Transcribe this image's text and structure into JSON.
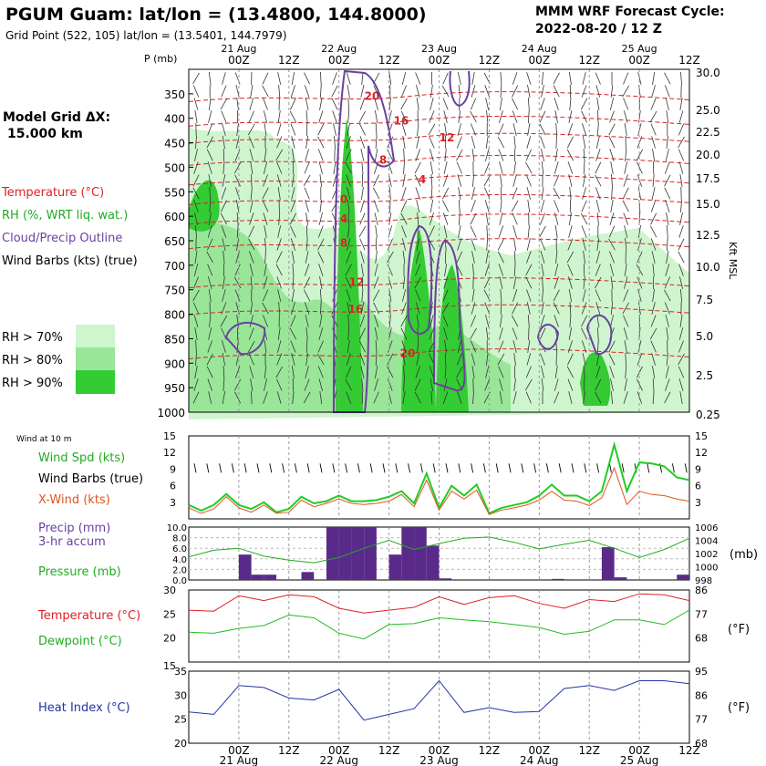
{
  "header": {
    "title": "PGUM Guam:  lat/lon = (13.4800, 144.8000)",
    "subtitle": "Grid Point (522, 105) lat/lon = (13.5401, 144.7979)",
    "cycle_line1": "MMM WRF Forecast Cycle:",
    "cycle_line2": "2022-08-20 / 12  Z"
  },
  "legend": {
    "grid_label": "Model Grid ΔX:",
    "grid_value": "15.000 km",
    "temperature": "Temperature (°C)",
    "rh": "RH (%, WRT liq. wat.)",
    "cloud": "Cloud/Precip Outline",
    "barbs": "Wind Barbs (kts) (true)",
    "rh70": "RH > 70%",
    "rh80": "RH > 80%",
    "rh90": "RH > 90%",
    "colors": {
      "rh70": "#cff5cf",
      "rh80": "#99e699",
      "rh90": "#33cc33",
      "temp": "#dd2222",
      "cloud": "#6b3fa0"
    }
  },
  "time_axis": {
    "top_dates": [
      "21 Aug",
      "22 Aug",
      "23 Aug",
      "24 Aug",
      "25 Aug"
    ],
    "bottom_dates": [
      "21 Aug",
      "22 Aug",
      "23 Aug",
      "24 Aug",
      "25 Aug"
    ],
    "hour_labels": [
      "00Z",
      "12Z",
      "00Z",
      "12Z",
      "00Z",
      "12Z",
      "00Z",
      "12Z",
      "00Z",
      "12Z"
    ],
    "hours_from_start": [
      12,
      24,
      36,
      48,
      60,
      72,
      84,
      96,
      108,
      120
    ],
    "range_hours": [
      0,
      120
    ]
  },
  "chart_data": [
    {
      "type": "heatmap",
      "name": "sounding-cross-section",
      "ylabel_left": "P (mb)",
      "ylabel_right": "Kft MSL",
      "pressure_ticks": [
        "350",
        "400",
        "450",
        "500",
        "550",
        "600",
        "650",
        "700",
        "750",
        "800",
        "850",
        "900",
        "950",
        "1000"
      ],
      "pressure_range": [
        300,
        1000
      ],
      "kft_ticks": [
        "30.0",
        "25.0",
        "22.5",
        "20.0",
        "17.5",
        "15.0",
        "12.5",
        "10.0",
        "7.5",
        "5.0",
        "2.5",
        "0.25"
      ],
      "temperature_contours_c": [
        {
          "label": "20",
          "p": 355
        },
        {
          "label": "16",
          "p": 405
        },
        {
          "label": "12",
          "p": 440
        },
        {
          "label": "8",
          "p": 485
        },
        {
          "label": "4",
          "p": 525
        },
        {
          "label": "0",
          "p": 565
        },
        {
          "label": "4",
          "p": 605
        },
        {
          "label": "8",
          "p": 655
        },
        {
          "label": "12",
          "p": 735
        },
        {
          "label": "16",
          "p": 790
        },
        {
          "label": "20",
          "p": 880
        }
      ]
    },
    {
      "type": "line",
      "name": "wind",
      "title": "Wind at 10 m",
      "ylim": [
        0,
        15
      ],
      "y_ticks": [
        "3",
        "6",
        "9",
        "12",
        "15"
      ],
      "labels": {
        "speed": "Wind Spd (kts)",
        "barbs": "Wind Barbs (true)",
        "xwind": "X-Wind (kts)"
      },
      "x": [
        0,
        3,
        6,
        9,
        12,
        15,
        18,
        21,
        24,
        27,
        30,
        33,
        36,
        39,
        42,
        45,
        48,
        51,
        54,
        57,
        60,
        63,
        66,
        69,
        72,
        75,
        78,
        81,
        84,
        87,
        90,
        93,
        96,
        99,
        102,
        105,
        108,
        111,
        114,
        117,
        120
      ],
      "series": [
        {
          "name": "Wind Spd (kts)",
          "values": [
            2.5,
            1.5,
            2.5,
            4.5,
            2.5,
            1.8,
            3.0,
            1.2,
            1.8,
            4.0,
            2.8,
            3.2,
            4.2,
            3.2,
            3.2,
            3.4,
            4.0,
            5.0,
            2.8,
            8.2,
            2.0,
            6.0,
            4.2,
            6.2,
            1.0,
            2.0,
            2.5,
            3.0,
            4.2,
            6.2,
            4.2,
            4.2,
            3.2,
            5.0,
            13.4,
            5.0,
            10.2,
            10.0,
            9.5,
            7.5,
            7.0
          ]
        },
        {
          "name": "X-Wind (kts)",
          "values": [
            2.0,
            1.0,
            1.8,
            4.0,
            2.0,
            1.2,
            2.5,
            1.0,
            1.2,
            3.4,
            2.2,
            2.8,
            3.6,
            2.8,
            2.6,
            2.8,
            3.2,
            4.4,
            2.2,
            7.0,
            1.6,
            5.0,
            3.6,
            5.2,
            0.8,
            1.6,
            2.0,
            2.5,
            3.4,
            5.0,
            3.4,
            3.2,
            2.4,
            3.8,
            9.2,
            2.6,
            5.0,
            4.4,
            4.2,
            3.6,
            3.2
          ]
        }
      ]
    },
    {
      "type": "bar",
      "name": "precip-pressure",
      "labels": {
        "precip": "Precip (mm)",
        "accum": "3-hr accum",
        "pressure": "Pressure (mb)",
        "right_unit": "(mb)"
      },
      "precip_ylim": [
        0,
        10
      ],
      "precip_ticks": [
        "0.0",
        "2.0",
        "4.0",
        "6.0",
        "8.0",
        "10.0"
      ],
      "pressure_ylim": [
        998,
        1006
      ],
      "pressure_ticks": [
        "998",
        "1000",
        "1002",
        "1004",
        "1006"
      ],
      "precip_x": [
        15,
        18,
        21,
        30,
        36,
        39,
        42,
        45,
        51,
        54,
        57,
        60,
        63,
        90,
        102,
        105,
        120
      ],
      "precip_values": [
        4.8,
        1.0,
        1.0,
        1.5,
        10.0,
        10.0,
        10.0,
        10.0,
        4.8,
        10.0,
        10.0,
        6.5,
        0.3,
        0.2,
        6.2,
        0.5,
        1.0
      ],
      "pressure_x": [
        0,
        6,
        12,
        18,
        24,
        30,
        36,
        42,
        48,
        54,
        60,
        66,
        72,
        78,
        84,
        90,
        96,
        102,
        108,
        114,
        120
      ],
      "pressure_values": [
        1001.5,
        1002.5,
        1002.8,
        1001.6,
        1001.0,
        1000.6,
        1001.4,
        1002.8,
        1004.0,
        1002.6,
        1003.5,
        1004.3,
        1004.5,
        1003.7,
        1002.7,
        1003.4,
        1004.0,
        1002.8,
        1001.4,
        1002.6,
        1004.3
      ]
    },
    {
      "type": "line",
      "name": "temperature",
      "ylim": [
        15,
        30
      ],
      "y_ticks": [
        "20",
        "25",
        "30"
      ],
      "right_ticks": [
        "68",
        "77",
        "86"
      ],
      "labels": {
        "temp": "Temperature (°C)",
        "dew": "Dewpoint (°C)",
        "right_unit": "(°F)"
      },
      "x": [
        0,
        6,
        12,
        18,
        24,
        30,
        36,
        42,
        48,
        54,
        60,
        66,
        72,
        78,
        84,
        90,
        96,
        102,
        108,
        114,
        120
      ],
      "series": [
        {
          "name": "Temperature (°C)",
          "values": [
            25.8,
            25.6,
            28.8,
            27.8,
            29.0,
            28.6,
            26.2,
            25.2,
            25.8,
            26.4,
            28.6,
            27.0,
            28.4,
            28.8,
            27.2,
            26.2,
            28.0,
            27.6,
            29.2,
            29.0,
            27.8
          ]
        },
        {
          "name": "Dewpoint (°C)",
          "values": [
            21.2,
            21.0,
            22.0,
            22.6,
            24.8,
            24.2,
            21.0,
            19.8,
            22.8,
            23.0,
            24.2,
            23.8,
            23.4,
            22.8,
            22.2,
            20.8,
            21.4,
            23.8,
            23.8,
            22.8,
            25.8
          ]
        }
      ]
    },
    {
      "type": "line",
      "name": "heat-index",
      "ylim": [
        20,
        35
      ],
      "y_ticks": [
        "20",
        "25",
        "30",
        "35"
      ],
      "right_ticks": [
        "68",
        "77",
        "86",
        "95"
      ],
      "extra_tick": "15",
      "labels": {
        "hi": "Heat Index (°C)",
        "right_unit": "(°F)"
      },
      "x": [
        0,
        6,
        12,
        18,
        24,
        30,
        36,
        42,
        48,
        54,
        60,
        66,
        72,
        78,
        84,
        90,
        96,
        102,
        108,
        114,
        120
      ],
      "series": [
        {
          "name": "Heat Index (°C)",
          "values": [
            26.5,
            26.0,
            32.0,
            31.6,
            29.4,
            29.0,
            31.2,
            24.8,
            26.0,
            27.2,
            33.0,
            26.4,
            27.4,
            26.4,
            26.6,
            31.4,
            32.0,
            31.0,
            33.0,
            33.0,
            32.4
          ]
        }
      ]
    }
  ]
}
